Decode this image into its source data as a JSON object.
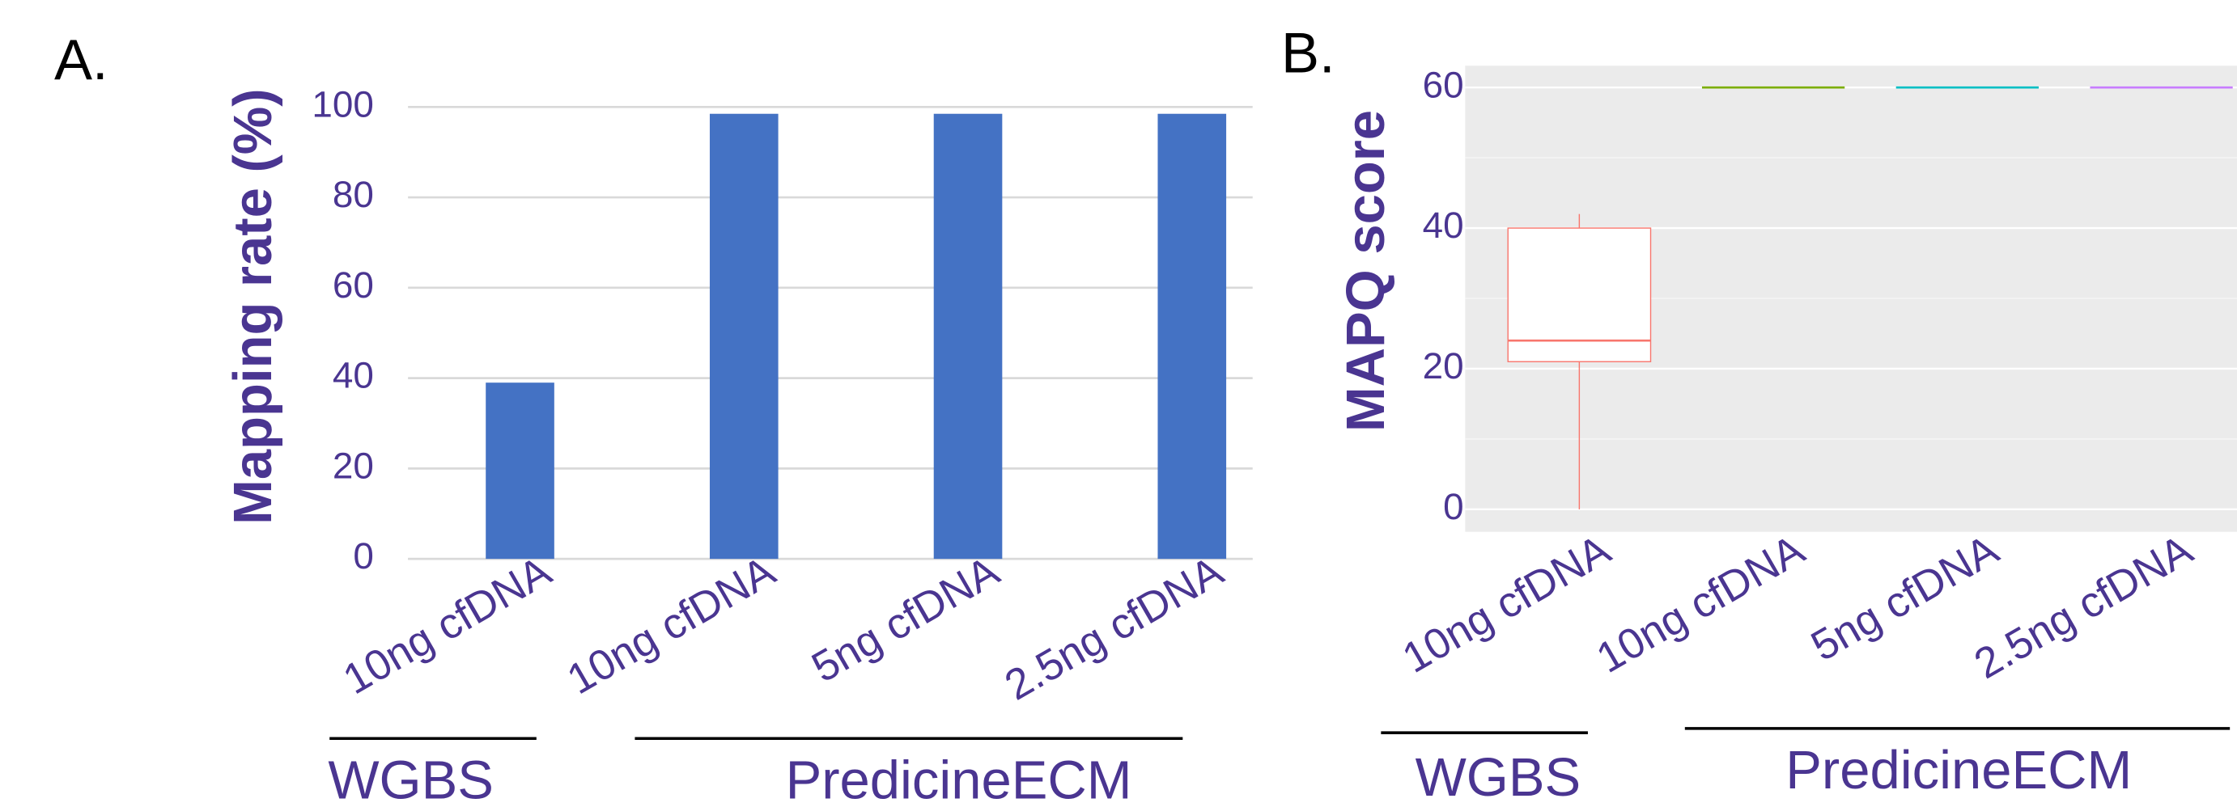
{
  "chart_data": [
    {
      "type": "bar",
      "panel_label": "A.",
      "y_label": "Mapping rate (%)",
      "categories": [
        "10ng cfDNA",
        "10ng cfDNA",
        "5ng cfDNA",
        "2.5ng cfDNA"
      ],
      "values": [
        39,
        98.5,
        98.5,
        98.5
      ],
      "color": "#4472c4",
      "ylim": [
        0,
        100
      ],
      "yticks": [
        0,
        20,
        40,
        60,
        80,
        100
      ],
      "grid": true,
      "groups": [
        "WGBS",
        "PredicineECM"
      ]
    },
    {
      "type": "box",
      "panel_label": "B.",
      "y_label": "MAPQ score",
      "categories": [
        "10ng cfDNA",
        "10ng cfDNA",
        "5ng cfDNA",
        "2.5ng cfDNA"
      ],
      "boxes": [
        {
          "low": 0,
          "q1": 21,
          "median": 24,
          "q3": 40,
          "high": 42,
          "color": "#f8766d"
        },
        {
          "low": 60,
          "q1": 60,
          "median": 60,
          "q3": 60,
          "high": 60,
          "color": "#7cae00"
        },
        {
          "low": 60,
          "q1": 60,
          "median": 60,
          "q3": 60,
          "high": 60,
          "color": "#00bfc4"
        },
        {
          "low": 60,
          "q1": 60,
          "median": 60,
          "q3": 60,
          "high": 60,
          "color": "#c77cff"
        }
      ],
      "ylim": [
        -3.2,
        63.1
      ],
      "yticks": [
        0,
        20,
        40,
        60
      ],
      "minor_yticks": [
        10,
        30,
        50
      ],
      "grid": true,
      "groups": [
        "WGBS",
        "PredicineECM"
      ]
    }
  ]
}
